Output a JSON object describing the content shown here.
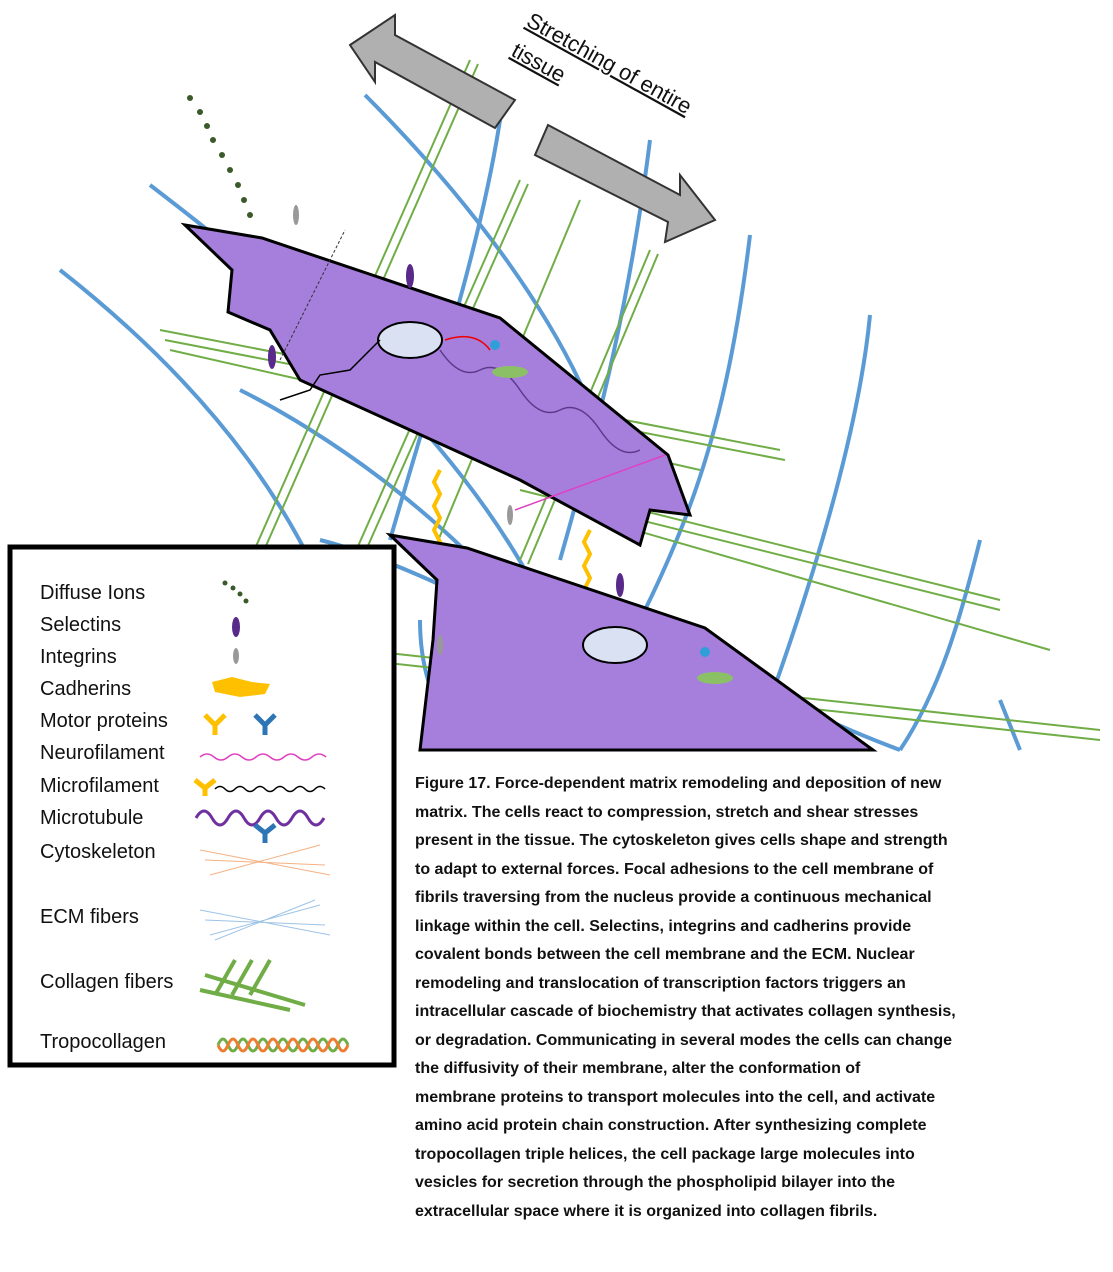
{
  "annotation": {
    "lines": [
      "Stretching of entire",
      "tissue"
    ]
  },
  "legend": {
    "items": [
      "Diffuse Ions",
      "Selectins",
      "Integrins",
      "Cadherins",
      "Motor proteins",
      "Neurofilament",
      "Microfilament",
      "Microtubule",
      "Cytoskeleton",
      "ECM fibers",
      "Collagen fibers",
      "Tropocollagen"
    ]
  },
  "caption": {
    "lines": [
      "Figure 17. Force-dependent matrix remodeling and deposition of new",
      "matrix. The cells react to compression, stretch and shear stresses",
      "present in the tissue. The cytoskeleton gives cells shape and strength",
      "to adapt to external forces. Focal adhesions to the cell membrane of",
      "fibrils traversing from the nucleus provide a continuous mechanical",
      "linkage within the cell. Selectins, integrins and cadherins provide",
      "covalent bonds between the cell membrane and the ECM. Nuclear",
      "remodeling and translocation of transcription factors triggers an",
      "intracellular cascade of biochemistry that activates collagen synthesis,",
      "or degradation. Communicating in several modes the cells can change",
      "the diffusivity of their membrane, alter the conformation of",
      "membrane proteins to transport molecules into the cell, and activate",
      "amino acid protein chain construction. After synthesizing complete",
      "tropocollagen triple helices, the cell package large molecules into",
      "vesicles for secretion through the phospholipid bilayer into the",
      "extracellular space where it is organized into collagen fibrils."
    ]
  }
}
